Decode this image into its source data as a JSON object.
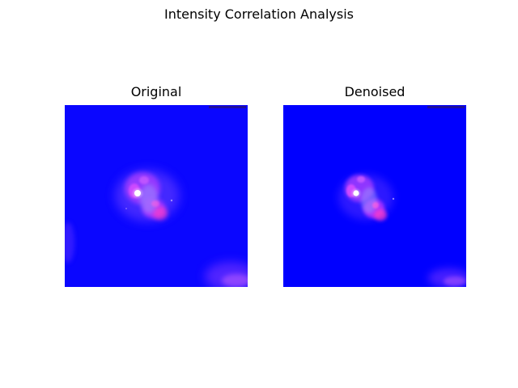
{
  "figure": {
    "title": "Intensity Correlation Analysis"
  },
  "panels": [
    {
      "title": "Original"
    },
    {
      "title": "Denoised"
    }
  ],
  "colors": {
    "background": "#0000ff",
    "cell_magenta": "#d23cff",
    "cell_pink": "#ff3cc8",
    "cell_lavender": "#9a8cff",
    "highlight": "#ffffff"
  }
}
